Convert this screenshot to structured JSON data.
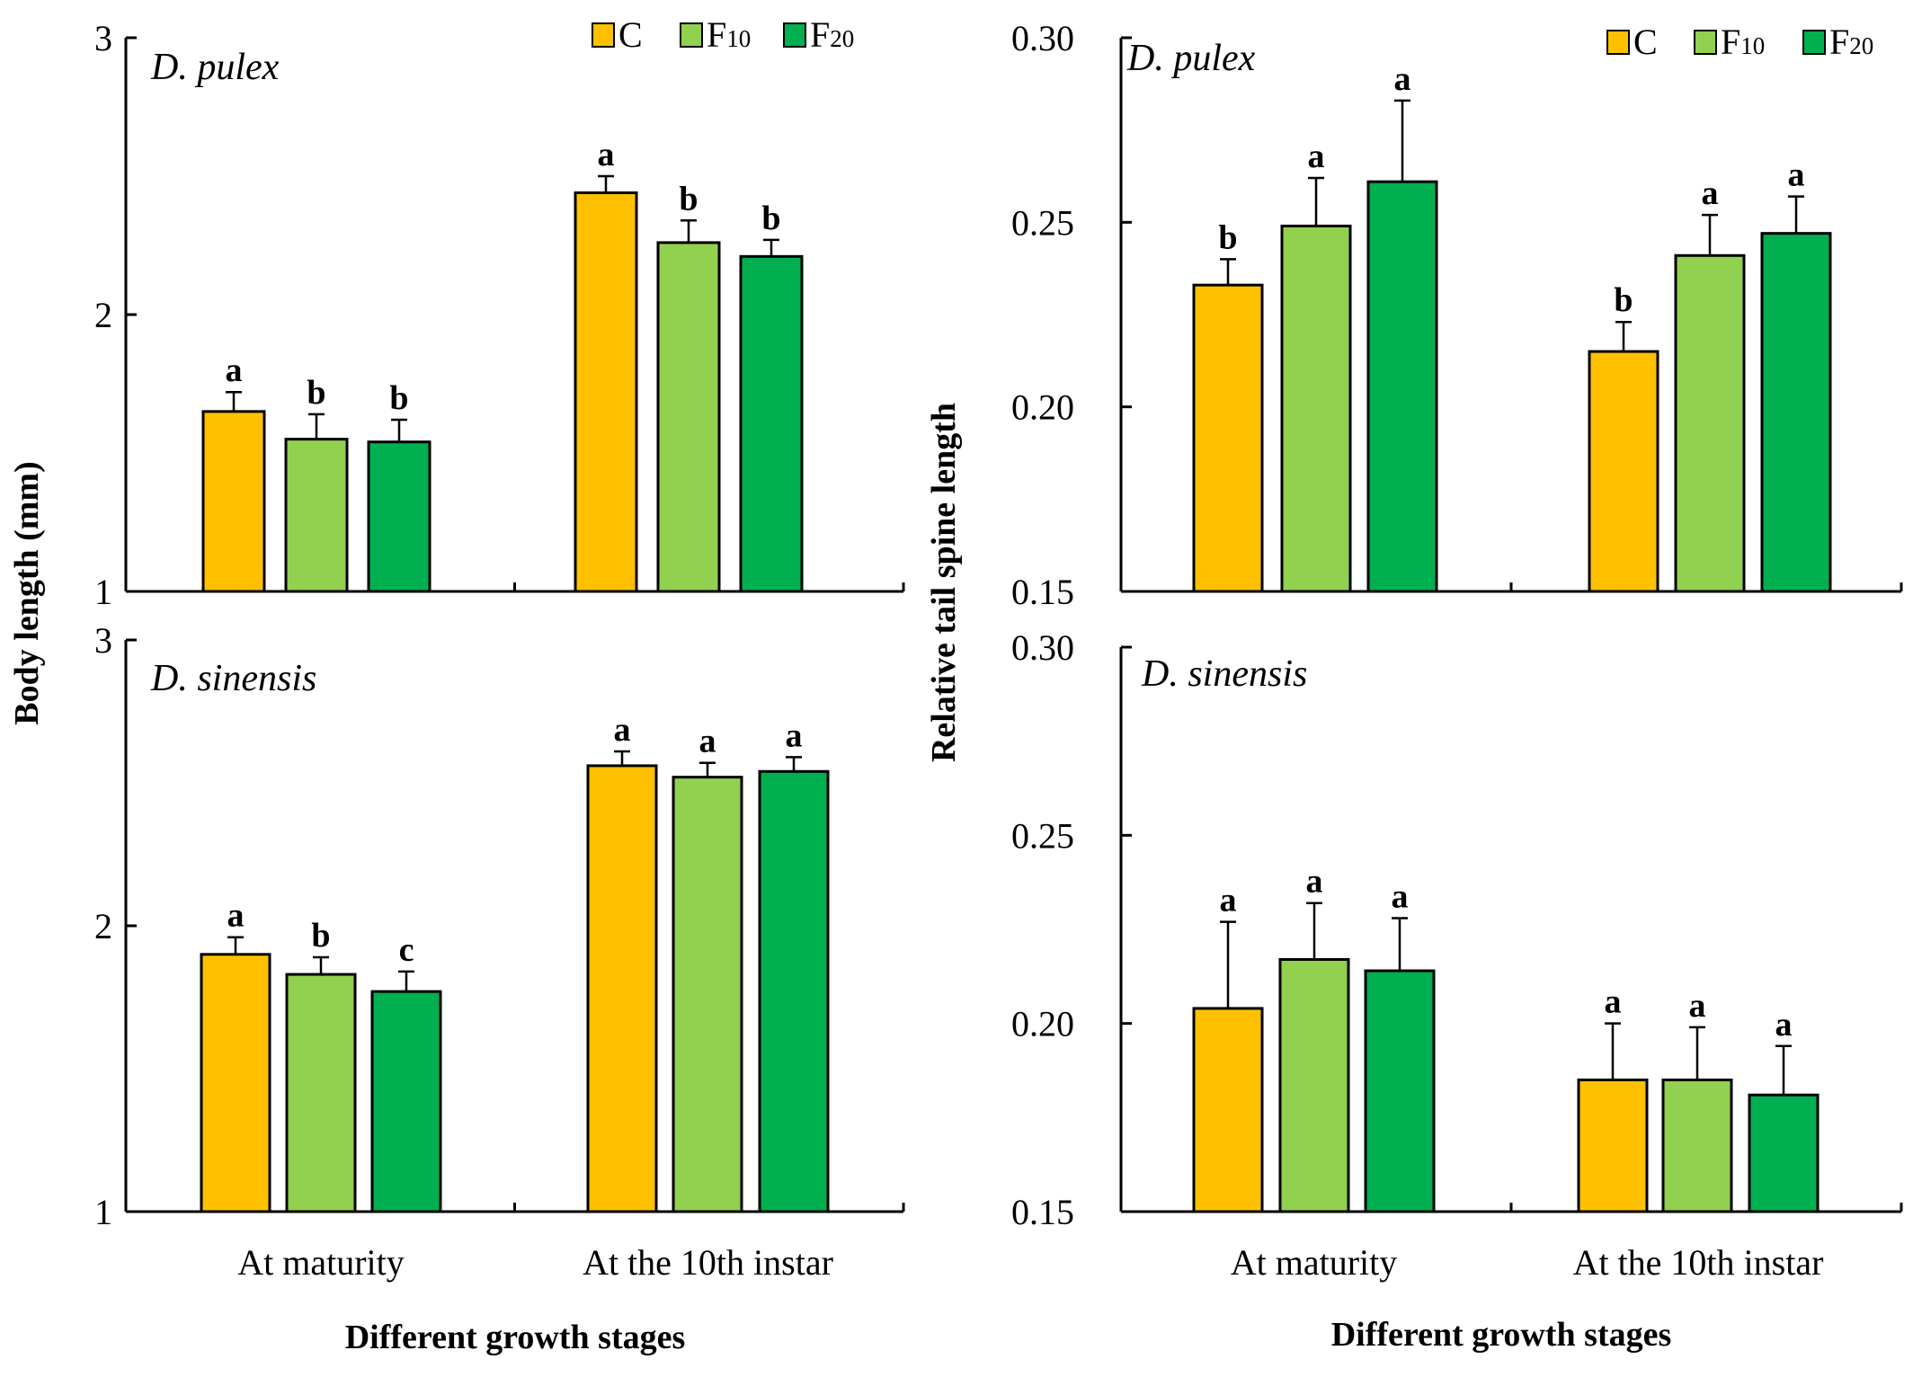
{
  "figure": {
    "left_ylabel": "Body length (mm)",
    "right_ylabel": "Relative tail spine length",
    "xlabel": "Different growth stages",
    "legend": [
      {
        "base": "C",
        "sub": "",
        "color": "#FFC000"
      },
      {
        "base": "F",
        "sub": "10",
        "color": "#92D050"
      },
      {
        "base": "F",
        "sub": "20",
        "color": "#00B050"
      }
    ]
  },
  "chart_data": [
    {
      "type": "bar",
      "species": "D. pulex",
      "ylabel": "Body length (mm)",
      "ylim": [
        1,
        3
      ],
      "yticks": [
        "1",
        "2",
        "3"
      ],
      "categories": [
        "At maturity",
        "At the 10th instar"
      ],
      "legend_position": "top-right",
      "series": [
        {
          "name": "C",
          "color": "#FFC000",
          "values": [
            1.65,
            2.44
          ],
          "errors": [
            0.07,
            0.06
          ],
          "letters": [
            "a",
            "a"
          ]
        },
        {
          "name": "F10",
          "color": "#92D050",
          "values": [
            1.55,
            2.26
          ],
          "errors": [
            0.09,
            0.08
          ],
          "letters": [
            "b",
            "b"
          ]
        },
        {
          "name": "F20",
          "color": "#00B050",
          "values": [
            1.54,
            2.21
          ],
          "errors": [
            0.08,
            0.06
          ],
          "letters": [
            "b",
            "b"
          ]
        }
      ]
    },
    {
      "type": "bar",
      "species": "D. pulex",
      "ylabel": "Relative tail spine length",
      "ylim": [
        0.15,
        0.3
      ],
      "yticks": [
        "0.15",
        "0.20",
        "0.25",
        "0.30"
      ],
      "categories": [
        "At maturity",
        "At the 10th instar"
      ],
      "legend_position": "top-right",
      "series": [
        {
          "name": "C",
          "color": "#FFC000",
          "values": [
            0.233,
            0.215
          ],
          "errors": [
            0.007,
            0.008
          ],
          "letters": [
            "b",
            "b"
          ]
        },
        {
          "name": "F10",
          "color": "#92D050",
          "values": [
            0.249,
            0.241
          ],
          "errors": [
            0.013,
            0.011
          ],
          "letters": [
            "a",
            "a"
          ]
        },
        {
          "name": "F20",
          "color": "#00B050",
          "values": [
            0.261,
            0.247
          ],
          "errors": [
            0.022,
            0.01
          ],
          "letters": [
            "a",
            "a"
          ]
        }
      ]
    },
    {
      "type": "bar",
      "species": "D. sinensis",
      "ylabel": "Body length (mm)",
      "ylim": [
        1,
        3
      ],
      "yticks": [
        "1",
        "2",
        "3"
      ],
      "categories": [
        "At maturity",
        "At the 10th instar"
      ],
      "xlabel": "Different growth stages",
      "series": [
        {
          "name": "C",
          "color": "#FFC000",
          "values": [
            1.9,
            2.56
          ],
          "errors": [
            0.06,
            0.05
          ],
          "letters": [
            "a",
            "a"
          ]
        },
        {
          "name": "F10",
          "color": "#92D050",
          "values": [
            1.83,
            2.52
          ],
          "errors": [
            0.06,
            0.05
          ],
          "letters": [
            "b",
            "a"
          ]
        },
        {
          "name": "F20",
          "color": "#00B050",
          "values": [
            1.77,
            2.54
          ],
          "errors": [
            0.07,
            0.05
          ],
          "letters": [
            "c",
            "a"
          ]
        }
      ]
    },
    {
      "type": "bar",
      "species": "D. sinensis",
      "ylabel": "Relative tail spine length",
      "ylim": [
        0.15,
        0.3
      ],
      "yticks": [
        "0.15",
        "0.20",
        "0.25",
        "0.30"
      ],
      "categories": [
        "At maturity",
        "At the 10th instar"
      ],
      "xlabel": "Different growth stages",
      "series": [
        {
          "name": "C",
          "color": "#FFC000",
          "values": [
            0.204,
            0.185
          ],
          "errors": [
            0.023,
            0.015
          ],
          "letters": [
            "a",
            "a"
          ]
        },
        {
          "name": "F10",
          "color": "#92D050",
          "values": [
            0.217,
            0.185
          ],
          "errors": [
            0.015,
            0.014
          ],
          "letters": [
            "a",
            "a"
          ]
        },
        {
          "name": "F20",
          "color": "#00B050",
          "values": [
            0.214,
            0.181
          ],
          "errors": [
            0.014,
            0.013
          ],
          "letters": [
            "a",
            "a"
          ]
        }
      ]
    }
  ]
}
